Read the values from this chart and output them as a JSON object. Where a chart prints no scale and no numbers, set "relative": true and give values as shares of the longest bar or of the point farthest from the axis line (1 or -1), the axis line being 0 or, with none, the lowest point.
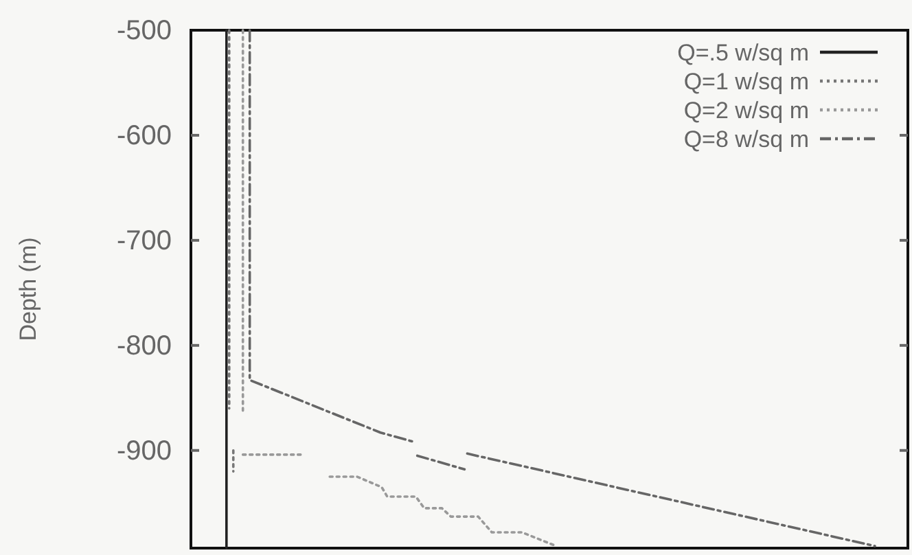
{
  "chart_data": {
    "type": "line",
    "orientation": "horizontal",
    "relative": true,
    "ylabel": "Depth (m)",
    "ylim": [
      -993,
      -500
    ],
    "yticks": [
      -500,
      -600,
      -700,
      -800,
      -900
    ],
    "tick_labels": "y",
    "grid": false,
    "legend": "top right",
    "series": [
      {
        "name": "Q=.5 w/sq m",
        "color": "#222222",
        "line_style": "solid",
        "x": [
          -500,
          -993
        ],
        "values": [
          0.052,
          0.052
        ]
      },
      {
        "name": "Q=1 w/sq m",
        "color": "#777777",
        "line_style": "dotted",
        "x": [
          -500,
          -860,
          -880,
          -900,
          -920
        ],
        "values": [
          0.056,
          0.056,
          null,
          0.062,
          0.062
        ]
      },
      {
        "name": "Q=2 w/sq m",
        "color": "#999999",
        "line_style": "dotted",
        "x": [
          -500,
          -862,
          -880,
          -904,
          -904,
          -915,
          -925,
          -925,
          -935,
          -944,
          -944,
          -955,
          -955,
          -963,
          -963,
          -978,
          -978,
          -991
        ],
        "values": [
          0.076,
          0.076,
          null,
          0.076,
          0.163,
          null,
          0.203,
          0.243,
          0.279,
          0.287,
          0.329,
          0.341,
          0.367,
          0.38,
          0.42,
          0.44,
          0.484,
          0.534
        ]
      },
      {
        "name": "Q=8 w/sq m",
        "color": "#666666",
        "line_style": "dashed",
        "x": [
          -500,
          -833,
          -883,
          -892,
          -900,
          -905,
          -918,
          -910,
          -903,
          -991
        ],
        "values": [
          0.086,
          0.086,
          0.277,
          0.327,
          null,
          0.331,
          0.4,
          null,
          0.404,
          1
        ]
      }
    ]
  }
}
